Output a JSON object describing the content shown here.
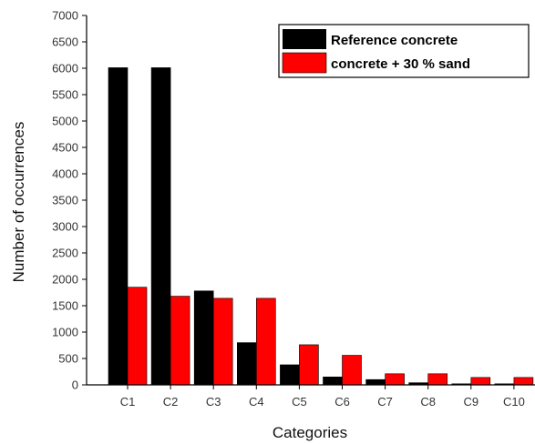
{
  "chart_data": {
    "type": "bar",
    "categories": [
      "C1",
      "C2",
      "C3",
      "C4",
      "C5",
      "C6",
      "C7",
      "C8",
      "C9",
      "C10"
    ],
    "series": [
      {
        "name": "Reference concrete",
        "color": "#000000",
        "values": [
          6010,
          6010,
          1780,
          800,
          380,
          150,
          100,
          40,
          20,
          20
        ]
      },
      {
        "name": "concrete + 30 % sand",
        "color": "#ff0000",
        "values": [
          1850,
          1680,
          1640,
          1640,
          760,
          560,
          210,
          210,
          140,
          140
        ]
      }
    ],
    "xlabel": "Categories",
    "ylabel": "Number of occurrences",
    "ylim": [
      0,
      7000
    ],
    "yticks": [
      "0",
      "500",
      "1000",
      "1500",
      "2000",
      "2500",
      "3000",
      "3500",
      "4000",
      "4500",
      "5000",
      "5500",
      "6000",
      "6500",
      "7000"
    ],
    "legend_position": "top-right",
    "grid": false
  }
}
